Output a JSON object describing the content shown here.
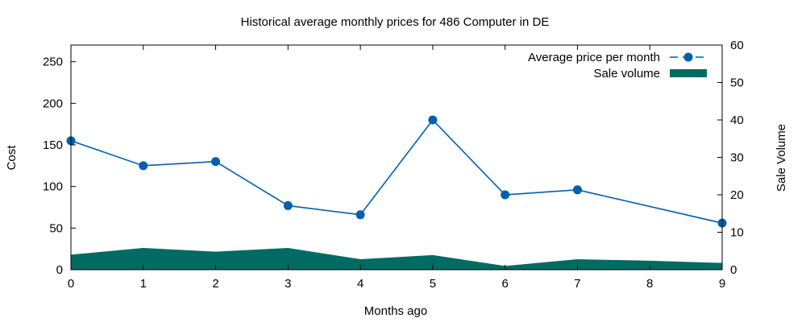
{
  "chart_data": {
    "type": "line",
    "title": "Historical average monthly prices for 486 Computer in DE",
    "xlabel": "Months ago",
    "ylabel": "Cost",
    "y2label": "Sale Volume",
    "x": [
      0,
      1,
      2,
      3,
      4,
      5,
      6,
      7,
      8,
      9
    ],
    "xlim": [
      0,
      9
    ],
    "ylim": [
      0,
      270
    ],
    "y2lim": [
      0,
      60
    ],
    "xticks": [
      "0",
      "1",
      "2",
      "3",
      "4",
      "5",
      "6",
      "7",
      "8",
      "9"
    ],
    "yticks": [
      "0",
      "50",
      "100",
      "150",
      "200",
      "250"
    ],
    "y2ticks": [
      "0",
      "10",
      "20",
      "30",
      "40",
      "50",
      "60"
    ],
    "grid": false,
    "legend_position": "top-right",
    "series": [
      {
        "name": "Average price per month",
        "axis": "left",
        "style": "line-points",
        "color": "#0060ad",
        "x": [
          0,
          1,
          2,
          3,
          4,
          5,
          6,
          7,
          9
        ],
        "values": [
          155,
          125,
          130,
          77,
          66,
          180,
          90,
          96,
          56
        ]
      },
      {
        "name": "Sale volume",
        "axis": "right",
        "style": "area",
        "color": "#006b63",
        "x": [
          0,
          1,
          2,
          3,
          4,
          5,
          6,
          7,
          8,
          9
        ],
        "values": [
          4,
          5.8,
          4.8,
          5.8,
          2.8,
          3.9,
          1,
          2.8,
          2.4,
          1.8
        ]
      }
    ]
  }
}
